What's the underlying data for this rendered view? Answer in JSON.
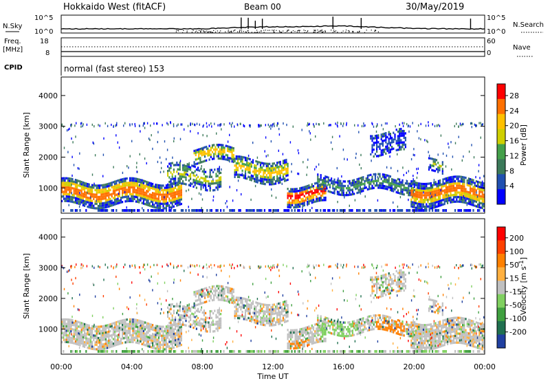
{
  "header": {
    "radar": "Hokkaido West (fitACF)",
    "beam": "Beam 00",
    "date": "30/May/2019"
  },
  "strips": {
    "nsky_label": "N.Sky",
    "nsearch_label": "N.Search",
    "top_ticks": [
      "10^5",
      "10^0"
    ],
    "freq_label_1": "Freq.",
    "freq_label_2": "[MHz]",
    "freq_ticks": [
      "18",
      "8"
    ],
    "nave_label": "Nave",
    "nave_ticks": [
      "60",
      "0"
    ],
    "cpid_label": "CPID",
    "cpid_value": "normal (fast stereo) 153"
  },
  "chart_data": [
    {
      "type": "heatmap",
      "name": "power",
      "ylabel": "Slant Range [km]",
      "yticks": [
        1000,
        2000,
        3000,
        4000
      ],
      "ylim": [
        180,
        4600
      ],
      "xlim": [
        0,
        24
      ],
      "colorbar_title": "Power [dB]",
      "colorbar_ticks": [
        "28",
        "24",
        "20",
        "16",
        "12",
        "8",
        "4"
      ],
      "colors": [
        "#0000ff",
        "#2050b0",
        "#3c7a5a",
        "#44a04a",
        "#cfcf00",
        "#ffc000",
        "#ff7000",
        "#ff0000"
      ],
      "palette_level": [
        {
          "color": "#0000ff"
        },
        {
          "color": "#2050b0"
        },
        {
          "color": "#3c7a5a"
        },
        {
          "color": "#44a04a"
        },
        {
          "color": "#cfcf00"
        },
        {
          "color": "#ffc000"
        },
        {
          "color": "#ff7000"
        },
        {
          "color": "#ff0000"
        }
      ]
    },
    {
      "type": "heatmap",
      "name": "velocity",
      "ylabel": "Slant Range [km]",
      "yticks": [
        1000,
        2000,
        3000,
        4000
      ],
      "ylim": [
        180,
        4600
      ],
      "xlim": [
        0,
        24
      ],
      "colorbar_title": "Velocity [m s",
      "colorbar_title_sup": "-1",
      "colorbar_title_end": "]",
      "colorbar_ticks": [
        "200",
        "100",
        "50",
        "15",
        "-15",
        "-50",
        "-100",
        "-200"
      ],
      "colors": [
        "#2040a0",
        "#207050",
        "#40a040",
        "#80d060",
        "#c0c0c0",
        "#ffb040",
        "#ff8000",
        "#ff4000",
        "#ff0000"
      ]
    }
  ],
  "xaxis": {
    "ticks": [
      "00:00",
      "04:00",
      "08:00",
      "12:00",
      "16:00",
      "20:00",
      "00:00"
    ],
    "label": "Time UT"
  },
  "features": {
    "bands": [
      {
        "t0": 0.0,
        "t1": 6.8,
        "r0": 420,
        "r1": 1200,
        "dens": 0.85,
        "center": "#ff7000"
      },
      {
        "t0": 6.0,
        "t1": 9.0,
        "r0": 1000,
        "r1": 1700,
        "dens": 0.6,
        "center": "#cfcf00"
      },
      {
        "t0": 7.5,
        "t1": 9.8,
        "r0": 1800,
        "r1": 2300,
        "dens": 0.7,
        "center": "#ffc000"
      },
      {
        "t0": 9.8,
        "t1": 12.8,
        "r0": 1200,
        "r1": 1900,
        "dens": 0.7,
        "center": "#ffc000"
      },
      {
        "t0": 12.8,
        "t1": 15.0,
        "r0": 450,
        "r1": 1100,
        "dens": 0.8,
        "center": "#ff0000"
      },
      {
        "t0": 14.5,
        "t1": 20.0,
        "r0": 850,
        "r1": 1300,
        "dens": 0.7,
        "center": "#44a04a"
      },
      {
        "t0": 17.5,
        "t1": 19.5,
        "r0": 2100,
        "r1": 2800,
        "dens": 0.6,
        "center": "#2050b0"
      },
      {
        "t0": 19.8,
        "t1": 24.0,
        "r0": 400,
        "r1": 1250,
        "dens": 0.85,
        "center": "#ff7000"
      },
      {
        "t0": 20.8,
        "t1": 21.7,
        "r0": 1450,
        "r1": 1850,
        "dens": 0.5,
        "center": "#cfcf00"
      }
    ]
  }
}
